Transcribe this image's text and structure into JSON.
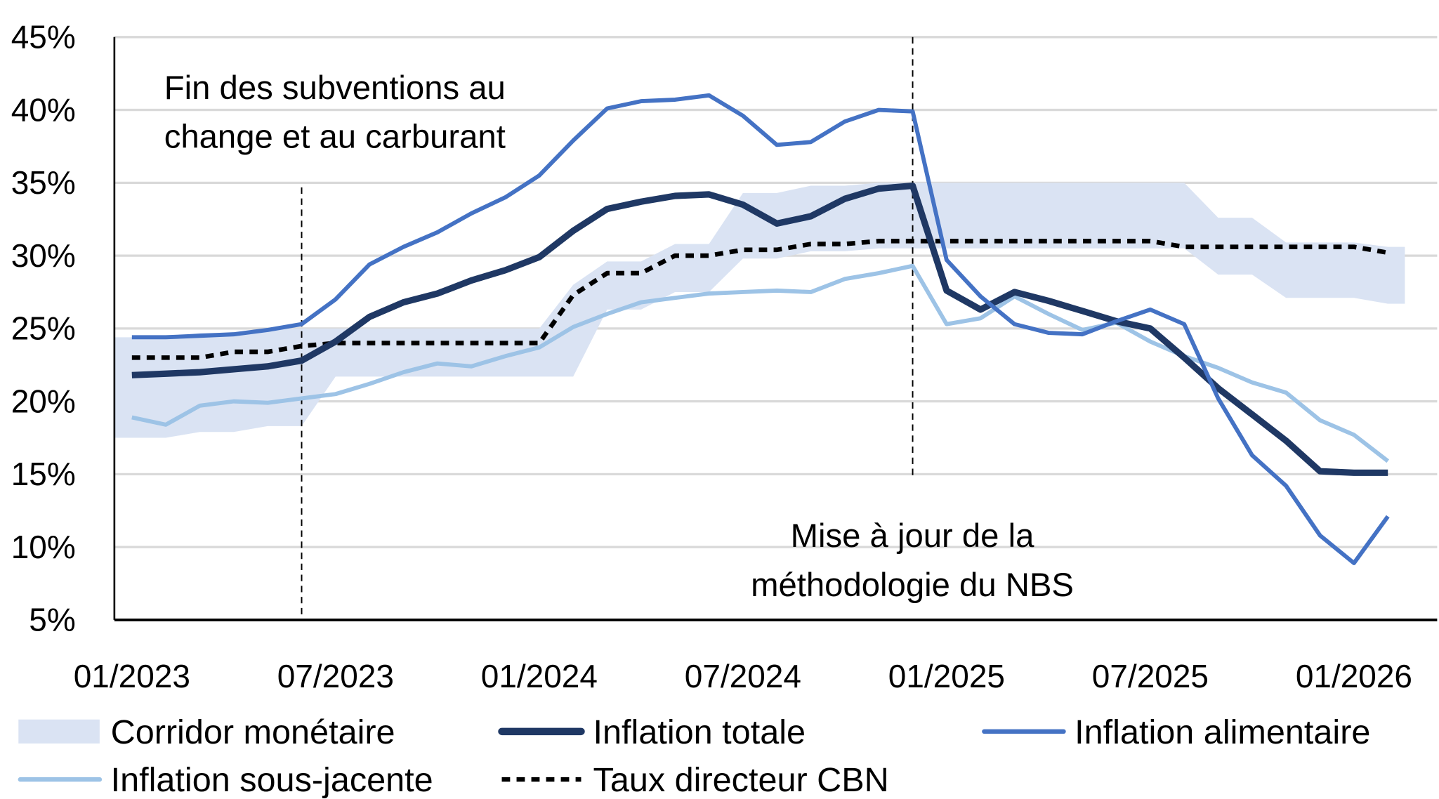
{
  "chart_data": {
    "type": "line",
    "title": "",
    "xlabel": "",
    "ylabel": "",
    "ylim": [
      5,
      45
    ],
    "y_ticks": [
      "5%",
      "10%",
      "15%",
      "20%",
      "25%",
      "30%",
      "35%",
      "40%",
      "45%"
    ],
    "y_tick_values": [
      5,
      10,
      15,
      20,
      25,
      30,
      35,
      40,
      45
    ],
    "x_tick_labels": [
      "01/2023",
      "07/2023",
      "01/2024",
      "07/2024",
      "01/2025",
      "07/2025",
      "01/2026"
    ],
    "x": [
      "01/2023",
      "02/2023",
      "03/2023",
      "04/2023",
      "05/2023",
      "06/2023",
      "07/2023",
      "08/2023",
      "09/2023",
      "10/2023",
      "11/2023",
      "12/2023",
      "01/2024",
      "02/2024",
      "03/2024",
      "04/2024",
      "05/2024",
      "06/2024",
      "07/2024",
      "08/2024",
      "09/2024",
      "10/2024",
      "11/2024",
      "12/2024",
      "01/2025",
      "02/2025",
      "03/2025",
      "04/2025",
      "05/2025",
      "06/2025",
      "07/2025",
      "08/2025",
      "09/2025",
      "10/2025",
      "11/2025",
      "12/2025",
      "01/2026",
      "02/2026"
    ],
    "grid": true,
    "legend_position": "bottom",
    "corridor": {
      "name": "Corridor monétaire",
      "color": "#DAE3F3",
      "upper": [
        24.4,
        24.4,
        24.7,
        24.7,
        25.0,
        25.0,
        25.0,
        25.0,
        25.0,
        25.0,
        25.0,
        25.0,
        25.0,
        28.0,
        29.6,
        29.6,
        30.8,
        30.8,
        34.3,
        34.3,
        34.8,
        34.8,
        35.0,
        35.0,
        35.0,
        35.0,
        35.0,
        35.0,
        35.0,
        35.0,
        35.0,
        35.0,
        32.6,
        32.6,
        30.9,
        30.9,
        30.9,
        30.6
      ],
      "lower": [
        17.5,
        17.5,
        17.9,
        17.9,
        18.3,
        18.3,
        21.7,
        21.7,
        21.7,
        21.7,
        21.7,
        21.7,
        21.7,
        21.7,
        26.3,
        26.3,
        27.5,
        27.5,
        29.8,
        29.8,
        30.3,
        30.3,
        30.5,
        30.5,
        30.5,
        30.5,
        30.5,
        30.5,
        30.5,
        30.5,
        30.5,
        30.5,
        28.7,
        28.7,
        27.1,
        27.1,
        27.1,
        26.7
      ]
    },
    "series": [
      {
        "name": "Inflation totale",
        "color": "#1F3864",
        "style": "solid-thick",
        "values": [
          21.8,
          21.9,
          22.0,
          22.2,
          22.4,
          22.8,
          24.1,
          25.8,
          26.8,
          27.4,
          28.3,
          29.0,
          29.9,
          31.7,
          33.2,
          33.7,
          34.1,
          34.2,
          33.5,
          32.2,
          32.7,
          33.9,
          34.6,
          34.8,
          27.6,
          26.3,
          27.5,
          26.9,
          26.2,
          25.5,
          25.0,
          23.0,
          20.9,
          19.1,
          17.3,
          15.2,
          15.1,
          15.1
        ]
      },
      {
        "name": "Inflation alimentaire",
        "color": "#4472C4",
        "style": "solid",
        "values": [
          24.4,
          24.4,
          24.5,
          24.6,
          24.9,
          25.3,
          27.0,
          29.4,
          30.6,
          31.6,
          32.9,
          34.0,
          35.5,
          37.9,
          40.1,
          40.6,
          40.7,
          41.0,
          39.6,
          37.6,
          37.8,
          39.2,
          40.0,
          39.9,
          29.7,
          27.2,
          25.3,
          24.7,
          24.6,
          25.5,
          26.3,
          25.3,
          20.2,
          16.3,
          14.2,
          10.8,
          8.9,
          12.1
        ]
      },
      {
        "name": "Inflation sous-jacente",
        "color": "#9DC3E6",
        "style": "solid",
        "values": [
          18.9,
          18.4,
          19.7,
          20.0,
          19.9,
          20.2,
          20.5,
          21.2,
          22.0,
          22.6,
          22.4,
          23.1,
          23.7,
          25.1,
          26.0,
          26.8,
          27.1,
          27.4,
          27.5,
          27.6,
          27.5,
          28.4,
          28.8,
          29.3,
          25.3,
          25.7,
          27.2,
          26.0,
          24.9,
          25.4,
          24.1,
          23.1,
          22.3,
          21.3,
          20.6,
          18.7,
          17.7,
          15.9
        ]
      },
      {
        "name": "Taux directeur CBN",
        "color": "#000000",
        "style": "dashed",
        "values": [
          23.0,
          23.0,
          23.0,
          23.4,
          23.4,
          23.8,
          24.0,
          24.0,
          24.0,
          24.0,
          24.0,
          24.0,
          24.0,
          27.3,
          28.8,
          28.8,
          30.0,
          30.0,
          30.4,
          30.4,
          30.8,
          30.8,
          31.0,
          31.0,
          31.0,
          31.0,
          31.0,
          31.0,
          31.0,
          31.0,
          31.0,
          30.6,
          30.6,
          30.6,
          30.6,
          30.6,
          30.6,
          30.2
        ]
      }
    ],
    "annotations": [
      {
        "lines": [
          "Fin des subventions au",
          "change et au carburant"
        ],
        "at": "06/2023"
      },
      {
        "lines": [
          "Mise à jour de la",
          "méthodologie du NBS"
        ],
        "at": "12/2024"
      }
    ]
  }
}
